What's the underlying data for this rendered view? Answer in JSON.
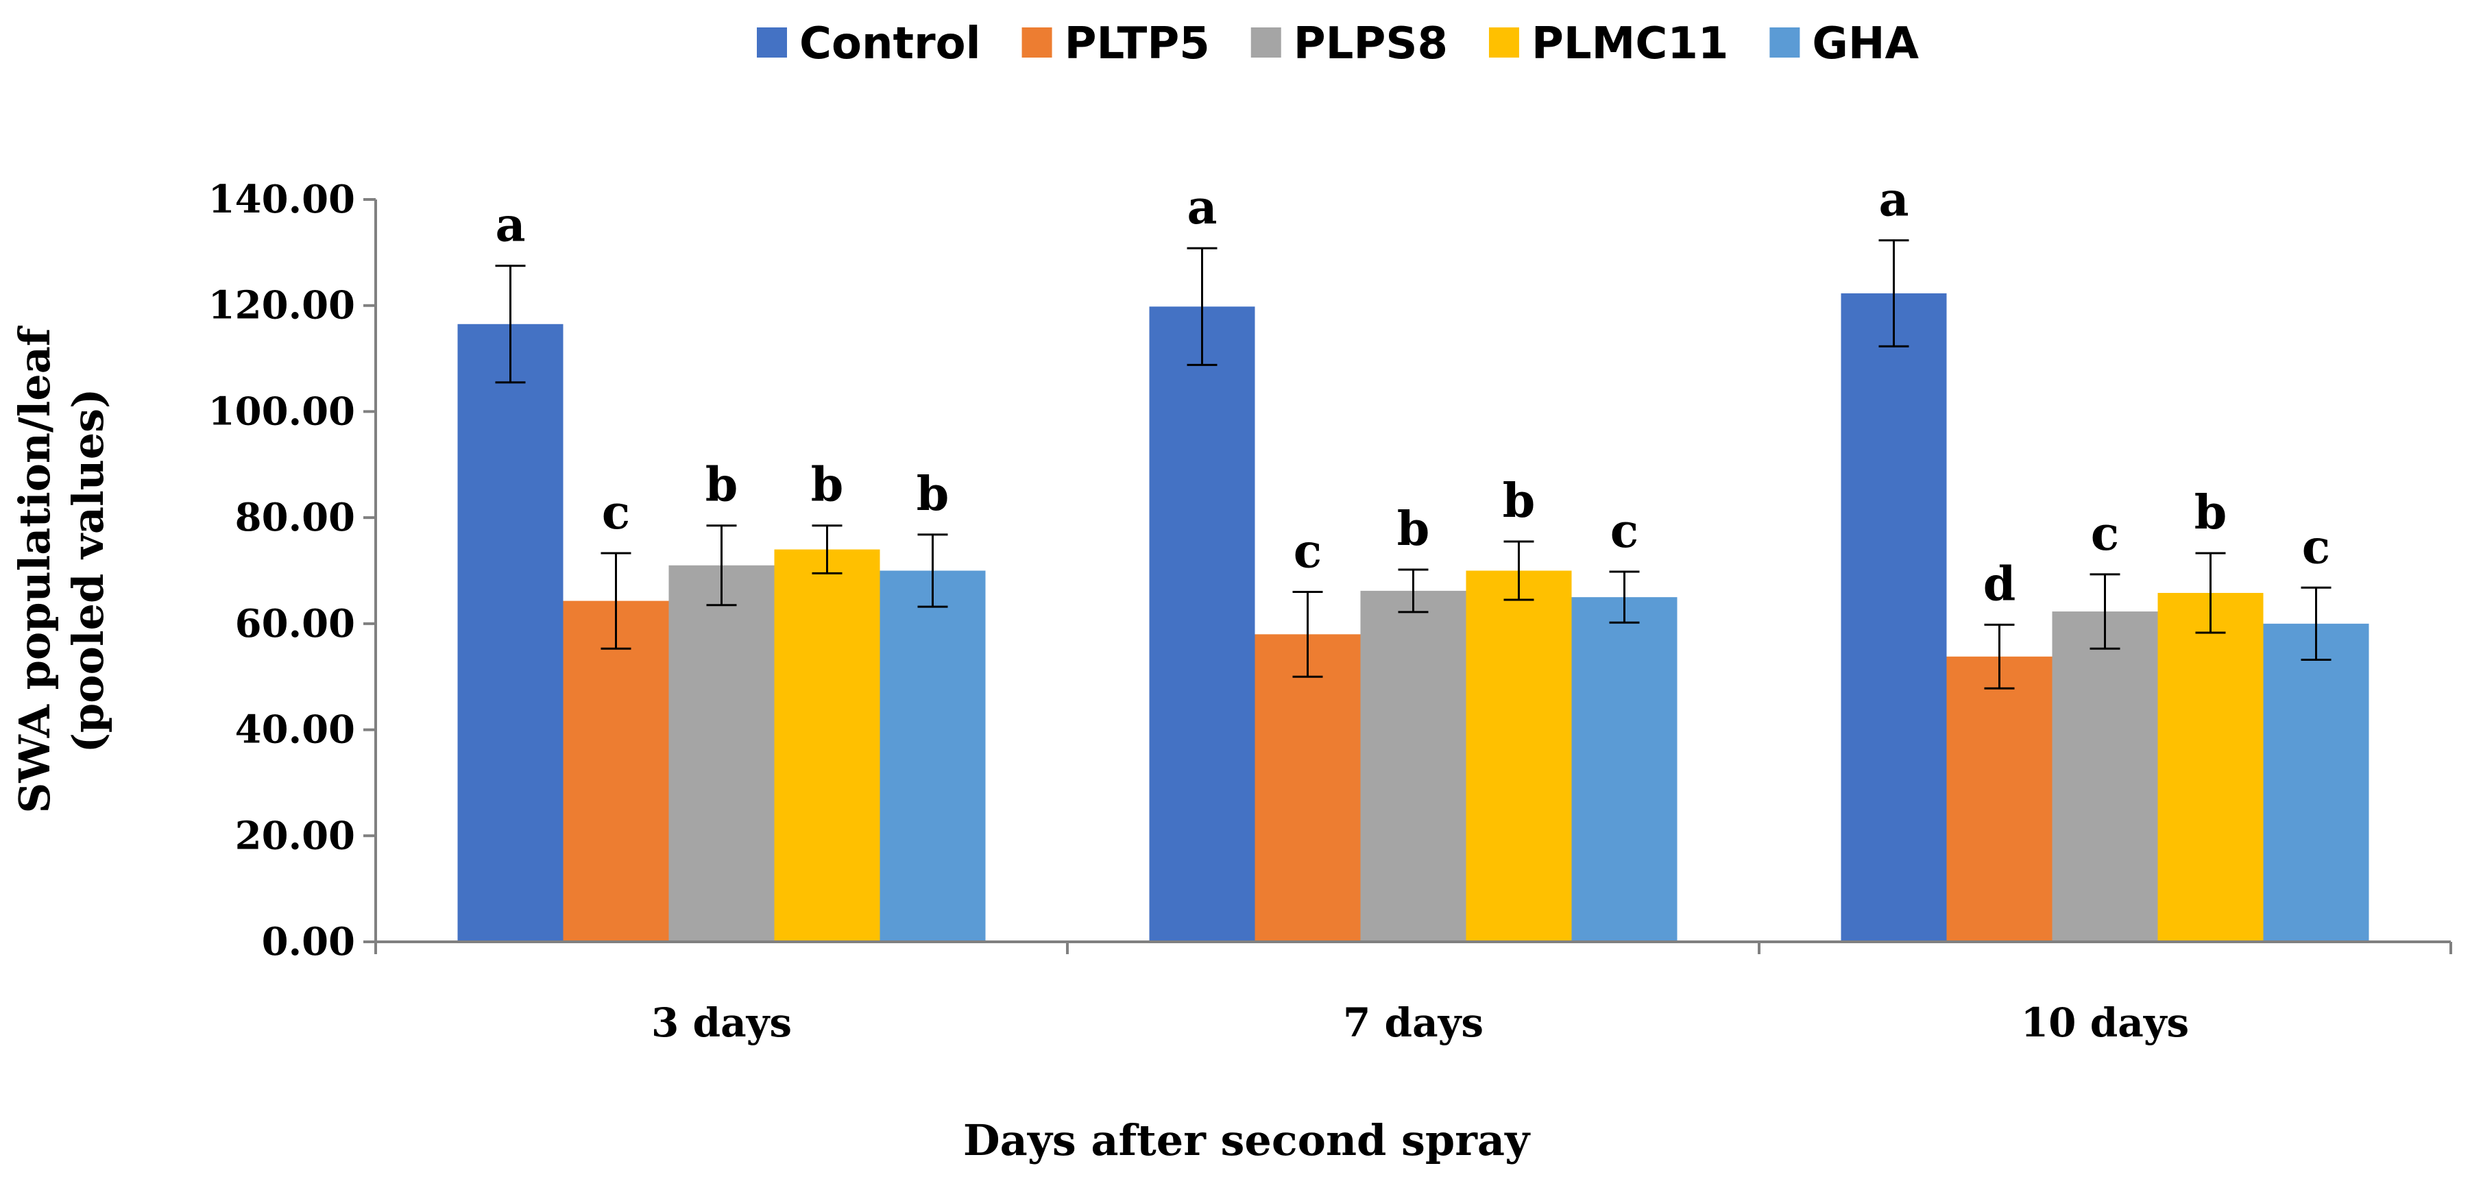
{
  "chart_data": {
    "type": "bar",
    "title": "",
    "xlabel": "Days after second spray",
    "ylabel_lines": [
      "SWA population/leaf",
      "(pooled values)"
    ],
    "ylim": [
      0,
      140
    ],
    "ytick_step": 20,
    "ytick_labels": [
      "0.00",
      "20.00",
      "40.00",
      "60.00",
      "80.00",
      "100.00",
      "120.00",
      "140.00"
    ],
    "categories": [
      "3 days",
      "7 days",
      "10 days"
    ],
    "legend_position": "top",
    "series": [
      {
        "name": "Control",
        "color": "#4472C4",
        "values": [
          116.5,
          119.8,
          122.3
        ],
        "errors": [
          11.0,
          11.0,
          10.0
        ],
        "letters": [
          "a",
          "a",
          "a"
        ]
      },
      {
        "name": "PLTP5",
        "color": "#ED7D31",
        "values": [
          64.3,
          58.0,
          53.8
        ],
        "errors": [
          9.0,
          8.0,
          6.0
        ],
        "letters": [
          "c",
          "c",
          "d"
        ]
      },
      {
        "name": "PLPS8",
        "color": "#A5A5A5",
        "values": [
          71.0,
          66.2,
          62.3
        ],
        "errors": [
          7.5,
          4.0,
          7.0
        ],
        "letters": [
          "b",
          "b",
          "c"
        ]
      },
      {
        "name": "PLMC11",
        "color": "#FFC000",
        "values": [
          74.0,
          70.0,
          65.8
        ],
        "errors": [
          4.5,
          5.5,
          7.5
        ],
        "letters": [
          "b",
          "b",
          "b"
        ]
      },
      {
        "name": "GHA",
        "color": "#5B9BD5",
        "values": [
          70.0,
          65.0,
          60.0
        ],
        "errors": [
          6.8,
          4.8,
          6.8
        ],
        "letters": [
          "b",
          "c",
          "c"
        ]
      }
    ]
  }
}
